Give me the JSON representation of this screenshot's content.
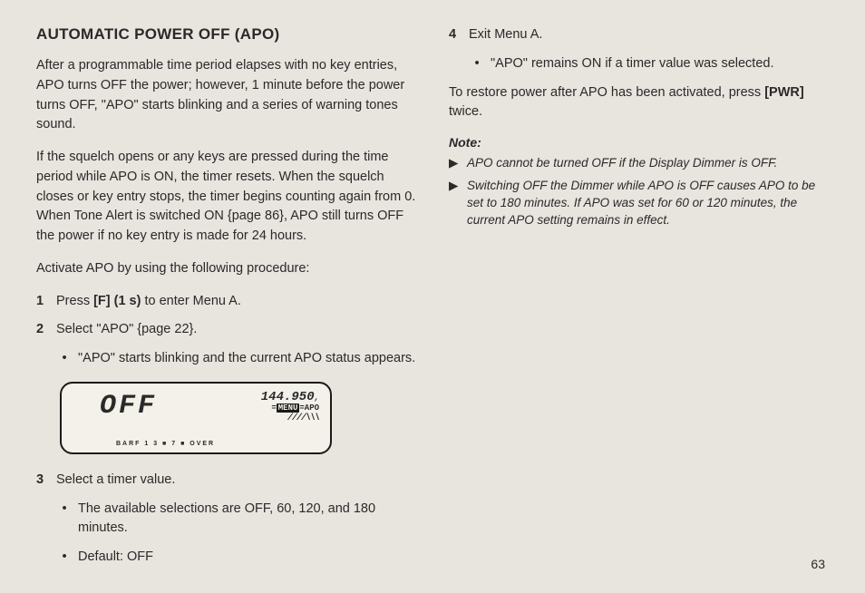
{
  "title": "AUTOMATIC POWER OFF (APO)",
  "para1": "After a programmable time period elapses with no key entries, APO turns OFF the power; however, 1 minute before the power turns OFF, \"APO\" starts blinking and a series of warning tones sound.",
  "para2": "If the squelch opens or any keys are pressed during the time period while APO is ON, the timer resets. When the squelch closes or key entry stops, the timer begins counting again from 0. When Tone Alert is switched ON {page 86}, APO still turns OFF the power if no key entry is made for 24 hours.",
  "para3": "Activate APO by using the following procedure:",
  "step1_num": "1",
  "step1_a": "Press ",
  "step1_b": "[F] (1 s)",
  "step1_c": " to enter Menu A.",
  "step2_num": "2",
  "step2": "Select \"APO\" {page 22}.",
  "step2_bullet": "\"APO\" starts blinking and the current APO status appears.",
  "display": {
    "main": "OFF",
    "freq": "144.950",
    "menu": "MENU",
    "apo": "APO",
    "bars_top": "\\\\\\\\",
    "bars_bot": "////\\\\\\",
    "bottom": "BARF   1  3  ■  7  ■  OVER"
  },
  "step3_num": "3",
  "step3": "Select a timer value.",
  "step3_b1": "The available selections are OFF, 60, 120, and 180 minutes.",
  "step3_b2": "Default: OFF",
  "step4_num": "4",
  "step4": "Exit Menu A.",
  "step4_bullet": "\"APO\" remains ON if a timer value was selected.",
  "restore_a": "To restore power after APO has been activated, press ",
  "restore_b": "[PWR]",
  "restore_c": " twice.",
  "note_head": "Note:",
  "note1": "APO cannot be turned OFF if the Display Dimmer is OFF.",
  "note2": "Switching OFF the Dimmer while APO is OFF causes APO to be set to 180 minutes. If APO was set for 60 or 120 minutes, the current APO setting remains in effect.",
  "pagenum": "63"
}
